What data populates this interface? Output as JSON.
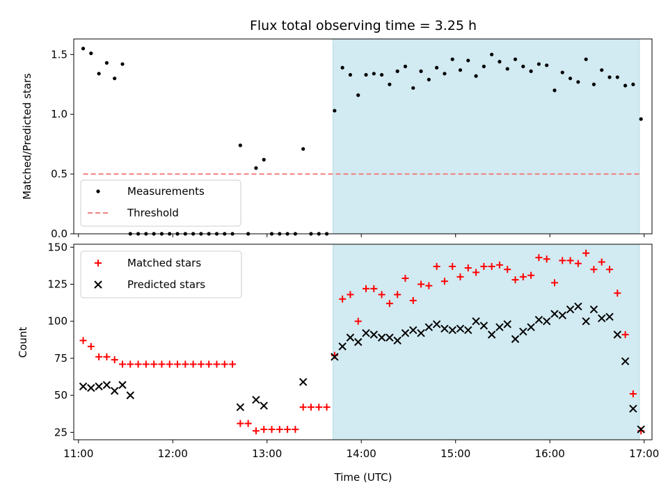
{
  "chart_data": [
    {
      "type": "scatter",
      "title": "Flux total observing time = 3.25 h",
      "xlabel": "",
      "ylabel": "Matched/Predicted stars",
      "xlim": [
        "10:57",
        "17:05"
      ],
      "ylim": [
        0,
        1.63
      ],
      "yticks": [
        "0.0",
        "0.5",
        "1.0",
        "1.5"
      ],
      "shaded_interval": [
        "13:42",
        "16:57"
      ],
      "shade_color": "#add8e6",
      "legend_position": "lower-left",
      "series": [
        {
          "name": "Measurements",
          "marker": "dot",
          "color": "#000000",
          "x": [
            "11:03",
            "11:08",
            "11:13",
            "11:18",
            "11:23",
            "11:28",
            "11:33",
            "11:38",
            "11:43",
            "11:48",
            "11:53",
            "11:58",
            "12:03",
            "12:08",
            "12:13",
            "12:18",
            "12:23",
            "12:28",
            "12:33",
            "12:38",
            "12:43",
            "12:48",
            "12:53",
            "12:58",
            "13:03",
            "13:08",
            "13:13",
            "13:18",
            "13:23",
            "13:28",
            "13:33",
            "13:38",
            "13:43",
            "13:48",
            "13:53",
            "13:58",
            "14:03",
            "14:08",
            "14:13",
            "14:18",
            "14:23",
            "14:28",
            "14:33",
            "14:38",
            "14:43",
            "14:48",
            "14:53",
            "14:58",
            "15:03",
            "15:08",
            "15:13",
            "15:18",
            "15:23",
            "15:28",
            "15:33",
            "15:38",
            "15:43",
            "15:48",
            "15:53",
            "15:58",
            "16:03",
            "16:08",
            "16:13",
            "16:18",
            "16:23",
            "16:28",
            "16:33",
            "16:38",
            "16:43",
            "16:48",
            "16:53",
            "16:58"
          ],
          "y": [
            1.55,
            1.51,
            1.34,
            1.43,
            1.3,
            1.42,
            0,
            0,
            0,
            0,
            0,
            0,
            0,
            0,
            0,
            0,
            0,
            0,
            0,
            0,
            0.74,
            0,
            0.55,
            0.62,
            0,
            0,
            0,
            0,
            0.71,
            0,
            0,
            0,
            1.03,
            1.39,
            1.33,
            1.16,
            1.33,
            1.34,
            1.33,
            1.25,
            1.36,
            1.4,
            1.22,
            1.36,
            1.29,
            1.39,
            1.34,
            1.46,
            1.37,
            1.45,
            1.32,
            1.4,
            1.5,
            1.44,
            1.38,
            1.46,
            1.4,
            1.36,
            1.42,
            1.41,
            1.2,
            1.35,
            1.3,
            1.27,
            1.46,
            1.25,
            1.37,
            1.31,
            1.31,
            1.24,
            1.25,
            0.96
          ]
        },
        {
          "name": "Threshold",
          "line": "dashed",
          "color": "#f08080",
          "x": [
            "11:03",
            "16:58"
          ],
          "y": [
            0.5,
            0.5
          ]
        }
      ]
    },
    {
      "type": "scatter",
      "title": "",
      "xlabel": "Time (UTC)",
      "ylabel": "Count",
      "xlim": [
        "10:57",
        "17:05"
      ],
      "ylim": [
        20,
        152
      ],
      "yticks": [
        "25",
        "50",
        "75",
        "100",
        "125",
        "150"
      ],
      "xticks": [
        "11:00",
        "12:00",
        "13:00",
        "14:00",
        "15:00",
        "16:00",
        "17:00"
      ],
      "shaded_interval": [
        "13:42",
        "16:57"
      ],
      "shade_color": "#add8e6",
      "legend_position": "upper-left",
      "series": [
        {
          "name": "Matched stars",
          "marker": "plus",
          "color": "#ff0000",
          "x": [
            "11:03",
            "11:08",
            "11:13",
            "11:18",
            "11:23",
            "11:28",
            "11:33",
            "11:38",
            "11:43",
            "11:48",
            "11:53",
            "11:58",
            "12:03",
            "12:08",
            "12:13",
            "12:18",
            "12:23",
            "12:28",
            "12:33",
            "12:38",
            "12:43",
            "12:48",
            "12:53",
            "12:58",
            "13:03",
            "13:08",
            "13:13",
            "13:18",
            "13:23",
            "13:28",
            "13:33",
            "13:38",
            "13:43",
            "13:48",
            "13:53",
            "13:58",
            "14:03",
            "14:08",
            "14:13",
            "14:18",
            "14:23",
            "14:28",
            "14:33",
            "14:38",
            "14:43",
            "14:48",
            "14:53",
            "14:58",
            "15:03",
            "15:08",
            "15:13",
            "15:18",
            "15:23",
            "15:28",
            "15:33",
            "15:38",
            "15:43",
            "15:48",
            "15:53",
            "15:58",
            "16:03",
            "16:08",
            "16:13",
            "16:18",
            "16:23",
            "16:28",
            "16:33",
            "16:38",
            "16:43",
            "16:48",
            "16:53",
            "16:58"
          ],
          "y": [
            87,
            83,
            76,
            76,
            74,
            71,
            71,
            71,
            71,
            71,
            71,
            71,
            71,
            71,
            71,
            71,
            71,
            71,
            71,
            71,
            31,
            31,
            26,
            27,
            27,
            27,
            27,
            27,
            42,
            42,
            42,
            42,
            77,
            115,
            118,
            100,
            122,
            122,
            118,
            112,
            118,
            129,
            114,
            125,
            124,
            137,
            127,
            137,
            130,
            136,
            133,
            137,
            137,
            138,
            135,
            128,
            130,
            131,
            143,
            142,
            126,
            141,
            141,
            139,
            146,
            135,
            140,
            135,
            119,
            91,
            51,
            26
          ]
        },
        {
          "name": "Predicted stars",
          "marker": "x",
          "color": "#000000",
          "x": [
            "11:03",
            "11:08",
            "11:13",
            "11:18",
            "11:23",
            "11:28",
            "11:33",
            "12:43",
            "12:53",
            "12:58",
            "13:23",
            "13:43",
            "13:48",
            "13:53",
            "13:58",
            "14:03",
            "14:08",
            "14:13",
            "14:18",
            "14:23",
            "14:28",
            "14:33",
            "14:38",
            "14:43",
            "14:48",
            "14:53",
            "14:58",
            "15:03",
            "15:08",
            "15:13",
            "15:18",
            "15:23",
            "15:28",
            "15:33",
            "15:38",
            "15:43",
            "15:48",
            "15:53",
            "15:58",
            "16:03",
            "16:08",
            "16:13",
            "16:18",
            "16:23",
            "16:28",
            "16:33",
            "16:38",
            "16:43",
            "16:48",
            "16:53",
            "16:58"
          ],
          "y": [
            56,
            55,
            56,
            57,
            53,
            57,
            50,
            42,
            47,
            43,
            59,
            76,
            83,
            89,
            86,
            92,
            91,
            89,
            89,
            87,
            92,
            94,
            92,
            96,
            98,
            95,
            94,
            95,
            94,
            100,
            97,
            91,
            96,
            98,
            88,
            93,
            96,
            101,
            100,
            105,
            104,
            108,
            110,
            100,
            108,
            102,
            103,
            91,
            73,
            41,
            27
          ]
        }
      ]
    }
  ]
}
